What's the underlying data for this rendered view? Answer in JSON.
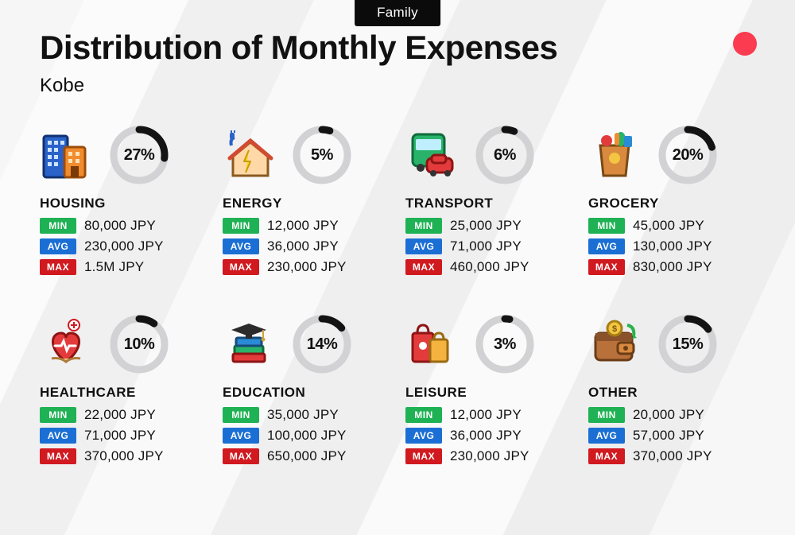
{
  "tag": "Family",
  "title": "Distribution of Monthly Expenses",
  "subtitle": "Kobe",
  "accent_dot_color": "#fb3b4f",
  "ring": {
    "track_color": "#d2d2d4",
    "progress_color": "#131313",
    "stroke_width": 9,
    "radius": 32,
    "size": 74
  },
  "badges": {
    "min": {
      "label": "MIN",
      "bg": "#1fb254"
    },
    "avg": {
      "label": "AVG",
      "bg": "#1b6fd4"
    },
    "max": {
      "label": "MAX",
      "bg": "#d11920"
    }
  },
  "font": {
    "title_size": 42,
    "title_weight": 800,
    "subtitle_size": 24,
    "category_size": 17,
    "category_weight": 800,
    "pct_size": 20,
    "pct_weight": 800,
    "value_size": 17
  },
  "categories": [
    {
      "key": "housing",
      "name": "HOUSING",
      "icon": "buildings",
      "pct": 27,
      "pct_label": "27%",
      "min": "80,000 JPY",
      "avg": "230,000 JPY",
      "max": "1.5M JPY"
    },
    {
      "key": "energy",
      "name": "ENERGY",
      "icon": "house-energy",
      "pct": 5,
      "pct_label": "5%",
      "min": "12,000 JPY",
      "avg": "36,000 JPY",
      "max": "230,000 JPY"
    },
    {
      "key": "transport",
      "name": "TRANSPORT",
      "icon": "bus-car",
      "pct": 6,
      "pct_label": "6%",
      "min": "25,000 JPY",
      "avg": "71,000 JPY",
      "max": "460,000 JPY"
    },
    {
      "key": "grocery",
      "name": "GROCERY",
      "icon": "grocery-bag",
      "pct": 20,
      "pct_label": "20%",
      "min": "45,000 JPY",
      "avg": "130,000 JPY",
      "max": "830,000 JPY"
    },
    {
      "key": "healthcare",
      "name": "HEALTHCARE",
      "icon": "health-heart",
      "pct": 10,
      "pct_label": "10%",
      "min": "22,000 JPY",
      "avg": "71,000 JPY",
      "max": "370,000 JPY"
    },
    {
      "key": "education",
      "name": "EDUCATION",
      "icon": "grad-books",
      "pct": 14,
      "pct_label": "14%",
      "min": "35,000 JPY",
      "avg": "100,000 JPY",
      "max": "650,000 JPY"
    },
    {
      "key": "leisure",
      "name": "LEISURE",
      "icon": "shopping-bags",
      "pct": 3,
      "pct_label": "3%",
      "min": "12,000 JPY",
      "avg": "36,000 JPY",
      "max": "230,000 JPY"
    },
    {
      "key": "other",
      "name": "OTHER",
      "icon": "wallet",
      "pct": 15,
      "pct_label": "15%",
      "min": "20,000 JPY",
      "avg": "57,000 JPY",
      "max": "370,000 JPY"
    }
  ]
}
